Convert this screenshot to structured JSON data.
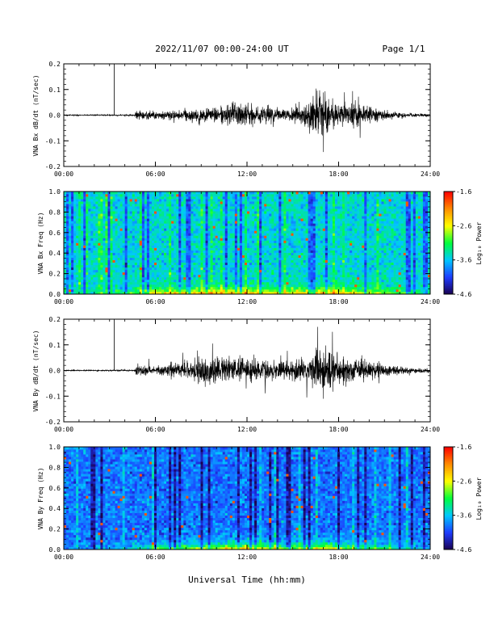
{
  "header": {
    "title": "2022/11/07  00:00-24:00 UT",
    "page": "Page 1/1"
  },
  "footer": {
    "xlabel": "Universal Time (hh:mm)"
  },
  "colorbar": {
    "label": "Log₁₀ Power",
    "ticks": [
      "-1.6",
      "-2.6",
      "-3.6",
      "-4.6"
    ],
    "tick_values": [
      -1.6,
      -2.6,
      -3.6,
      -4.6
    ],
    "range": [
      -4.6,
      -1.6
    ],
    "colormap": [
      "#1a0050",
      "#1e3cff",
      "#00c8ff",
      "#00ff3c",
      "#ffff00",
      "#ff8c00",
      "#ff0000"
    ]
  },
  "chart_data": [
    {
      "type": "line",
      "ylabel": "VNA Bx dB/dt (nT/sec)",
      "xlim": [
        0,
        24
      ],
      "ylim": [
        -0.2,
        0.2
      ],
      "x_ticks": [
        "00:00",
        "06:00",
        "12:00",
        "18:00",
        "24:00"
      ],
      "y_ticks": [
        "0.2",
        "0.1",
        "0.0",
        "-0.1",
        "-0.2"
      ],
      "y_tick_values": [
        0.2,
        0.1,
        0.0,
        -0.1,
        -0.2
      ],
      "envelope": {
        "hours": [
          0,
          3,
          4.6,
          4.8,
          6,
          8,
          9,
          10,
          11,
          12,
          13,
          14,
          15,
          16,
          16.5,
          17,
          17.5,
          18,
          19,
          20,
          21,
          22,
          23,
          24
        ],
        "amplitude": [
          0.004,
          0.005,
          0.006,
          0.04,
          0.03,
          0.04,
          0.05,
          0.07,
          0.08,
          0.09,
          0.07,
          0.05,
          0.06,
          0.09,
          0.2,
          0.2,
          0.12,
          0.1,
          0.1,
          0.07,
          0.04,
          0.02,
          0.015,
          0.01
        ]
      },
      "spike_hours": [
        3.3
      ]
    },
    {
      "type": "heatmap",
      "ylabel": "VNA Bx Freq (Hz)",
      "xlim": [
        0,
        24
      ],
      "ylim": [
        0,
        1.0
      ],
      "x_ticks": [
        "00:00",
        "06:00",
        "12:00",
        "18:00",
        "24:00"
      ],
      "y_ticks": [
        "1.0",
        "0.8",
        "0.6",
        "0.4",
        "0.2",
        "0.0"
      ],
      "y_tick_values": [
        1.0,
        0.8,
        0.6,
        0.4,
        0.2,
        0.0
      ],
      "value_range": [
        -4.6,
        -1.6
      ],
      "background_level": -3.5,
      "low_freq_band": {
        "hours": [
          0,
          4,
          5,
          6,
          8,
          10,
          11,
          12,
          14,
          16,
          17,
          18,
          20,
          22,
          24
        ],
        "boost": [
          0.2,
          0.3,
          0.8,
          1.1,
          1.3,
          1.5,
          1.7,
          1.4,
          1.1,
          1.2,
          1.5,
          1.3,
          0.9,
          0.6,
          0.4
        ]
      }
    },
    {
      "type": "line",
      "ylabel": "VNA By dB/dt (nT/sec)",
      "xlim": [
        0,
        24
      ],
      "ylim": [
        -0.2,
        0.2
      ],
      "x_ticks": [
        "00:00",
        "06:00",
        "12:00",
        "18:00",
        "24:00"
      ],
      "y_ticks": [
        "0.2",
        "0.1",
        "0.0",
        "-0.1",
        "-0.2"
      ],
      "y_tick_values": [
        0.2,
        0.1,
        0.0,
        -0.1,
        -0.2
      ],
      "envelope": {
        "hours": [
          0,
          3,
          4.6,
          4.8,
          6,
          7,
          8,
          9,
          10,
          11,
          12,
          13,
          14,
          15,
          16,
          17,
          17.5,
          18,
          19,
          20,
          21,
          22,
          23,
          24
        ],
        "amplitude": [
          0.004,
          0.005,
          0.006,
          0.04,
          0.03,
          0.05,
          0.07,
          0.09,
          0.11,
          0.1,
          0.1,
          0.08,
          0.07,
          0.08,
          0.1,
          0.2,
          0.18,
          0.13,
          0.11,
          0.08,
          0.05,
          0.03,
          0.02,
          0.015
        ]
      },
      "spike_hours": [
        3.3
      ]
    },
    {
      "type": "heatmap",
      "ylabel": "VNA By Freq (Hz)",
      "xlim": [
        0,
        24
      ],
      "ylim": [
        0,
        1.0
      ],
      "x_ticks": [
        "00:00",
        "06:00",
        "12:00",
        "18:00",
        "24:00"
      ],
      "y_ticks": [
        "1.0",
        "0.8",
        "0.6",
        "0.4",
        "0.2",
        "0.0"
      ],
      "y_tick_values": [
        1.0,
        0.8,
        0.6,
        0.4,
        0.2,
        0.0
      ],
      "value_range": [
        -4.6,
        -1.6
      ],
      "background_level": -3.9,
      "low_freq_band": {
        "hours": [
          0,
          4,
          5,
          6,
          8,
          10,
          11,
          12,
          14,
          16,
          17,
          18,
          20,
          22,
          24
        ],
        "boost": [
          0.2,
          0.3,
          0.6,
          0.9,
          1.2,
          1.5,
          1.8,
          1.7,
          1.4,
          1.3,
          1.6,
          1.4,
          1.0,
          0.7,
          0.4
        ]
      }
    }
  ]
}
